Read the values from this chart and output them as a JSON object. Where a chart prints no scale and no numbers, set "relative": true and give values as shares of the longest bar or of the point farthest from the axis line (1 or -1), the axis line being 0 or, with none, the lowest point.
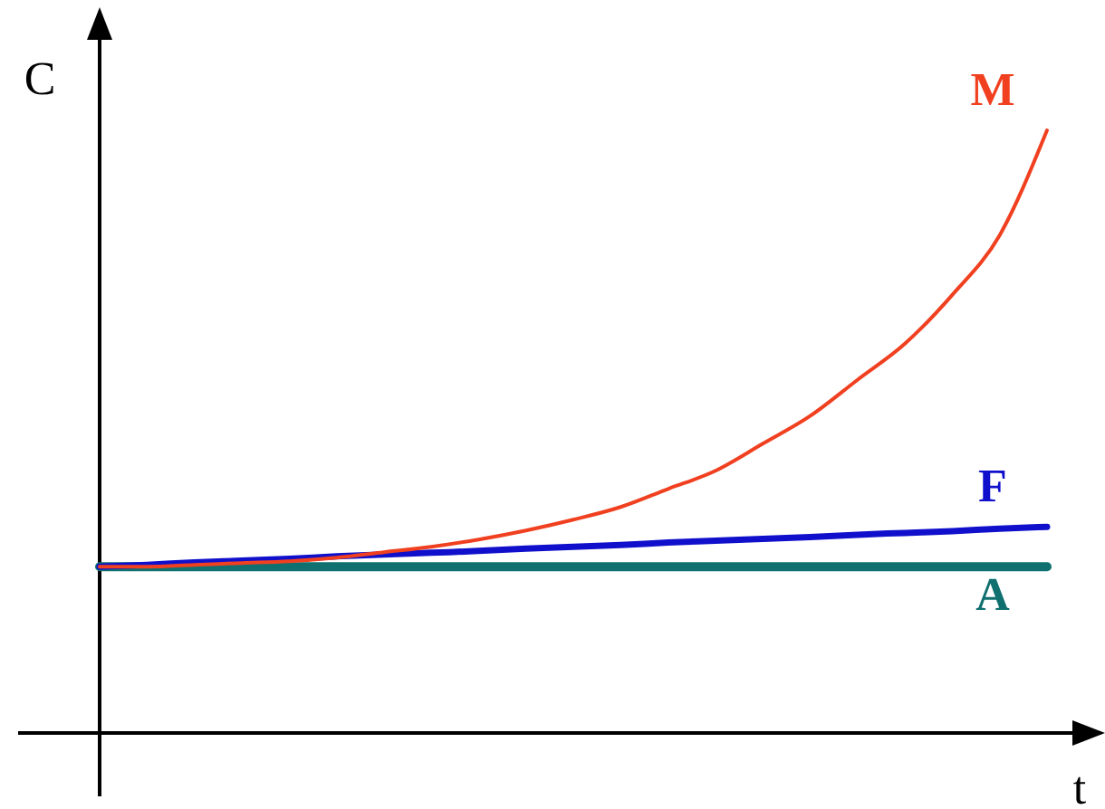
{
  "chart_data": {
    "type": "line",
    "xlabel": "t",
    "ylabel": "C",
    "relative": true,
    "categories": [
      null,
      null,
      null,
      null,
      null,
      null,
      null,
      null,
      null,
      null,
      null,
      null,
      null,
      null,
      null,
      null,
      null,
      null,
      null,
      null,
      null
    ],
    "series": [
      {
        "name": "M",
        "color": "#f04020",
        "values": [
          0.276,
          0.276,
          0.279,
          0.282,
          0.285,
          0.291,
          0.3,
          0.309,
          0.321,
          0.336,
          0.354,
          0.375,
          0.405,
          0.435,
          0.48,
          0.526,
          0.586,
          0.646,
          0.727,
          0.826,
          1
        ]
      },
      {
        "name": "F",
        "color": "#1010cc",
        "values": [
          0.276,
          0.279,
          0.283,
          0.286,
          0.289,
          0.293,
          0.296,
          0.299,
          0.302,
          0.306,
          0.309,
          0.312,
          0.316,
          0.319,
          0.322,
          0.325,
          0.329,
          0.332,
          0.335,
          0.339,
          0.342
        ]
      },
      {
        "name": "A",
        "color": "#107070",
        "values": [
          0.276,
          0.276,
          0.276,
          0.276,
          0.276,
          0.276,
          0.276,
          0.276,
          0.276,
          0.276,
          0.276,
          0.276,
          0.276,
          0.276,
          0.276,
          0.276,
          0.276,
          0.276,
          0.276,
          0.276,
          0.276
        ]
      }
    ]
  }
}
